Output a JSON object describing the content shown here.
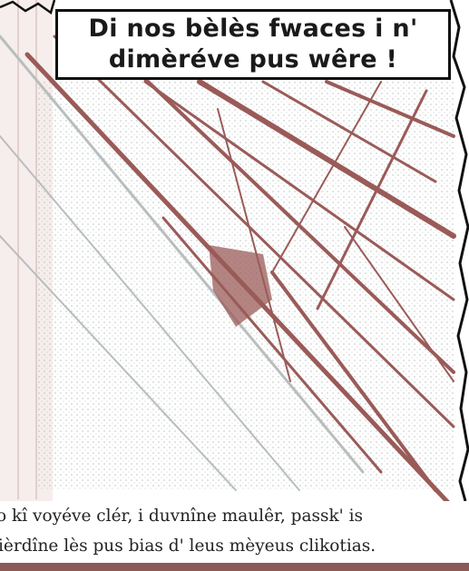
{
  "panel": {
    "title_lines": [
      "Di nos bèlès fwaces i n'",
      "dimèréve pus wêre !"
    ],
    "colors": {
      "ink": "#1a1a1a",
      "brown": "#9a5b58",
      "paper": "#ffffff",
      "grey": "#b9bdbd"
    }
  },
  "caption": {
    "lines": [
      "o kî voyéve clér, i duvnîne maulêr, passk' is",
      "ièrdîne lès pus bias d' leus mèyeus clikotias."
    ]
  }
}
